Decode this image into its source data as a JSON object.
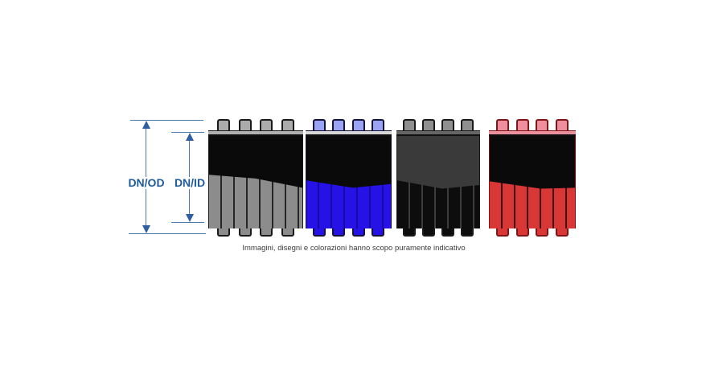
{
  "dimensions": {
    "od_label": "DN/OD",
    "id_label": "DN/ID",
    "line_color": "#4d7ab0",
    "arrow_color": "#2e5f9e",
    "label_color": "#1f5c99"
  },
  "tubes": [
    {
      "name": "gray",
      "rib_color": "#8c8c8c",
      "knob_color": "#ababab",
      "bar_color": "#b0b0b0",
      "separator_color": "#262626",
      "interior_color": "#0a0a0a",
      "outline_color": "#1a1a1a"
    },
    {
      "name": "blue",
      "rib_color": "#2612e6",
      "knob_color": "#9aa4f2",
      "bar_color": "#d6d6d6",
      "separator_color": "#150b9e",
      "interior_color": "#0a0a0a",
      "outline_color": "#14143a"
    },
    {
      "name": "black",
      "rib_color": "#0d0d0d",
      "knob_color": "#8f8f8f",
      "bar_color": "#666666",
      "separator_color": "#3c3c3c",
      "interior_color": "#3a3a3a",
      "outline_color": "#1a1a1a"
    },
    {
      "name": "red",
      "rib_color": "#d93636",
      "knob_color": "#ef8f9d",
      "bar_color": "#ea8f9d",
      "separator_color": "#3f0f0f",
      "interior_color": "#0a0a0a",
      "outline_color": "#7e1616"
    }
  ],
  "caption": {
    "text": "Immagini, disegni e colorazioni hanno scopo puramente indicativo",
    "color": "#3d3d3d"
  }
}
